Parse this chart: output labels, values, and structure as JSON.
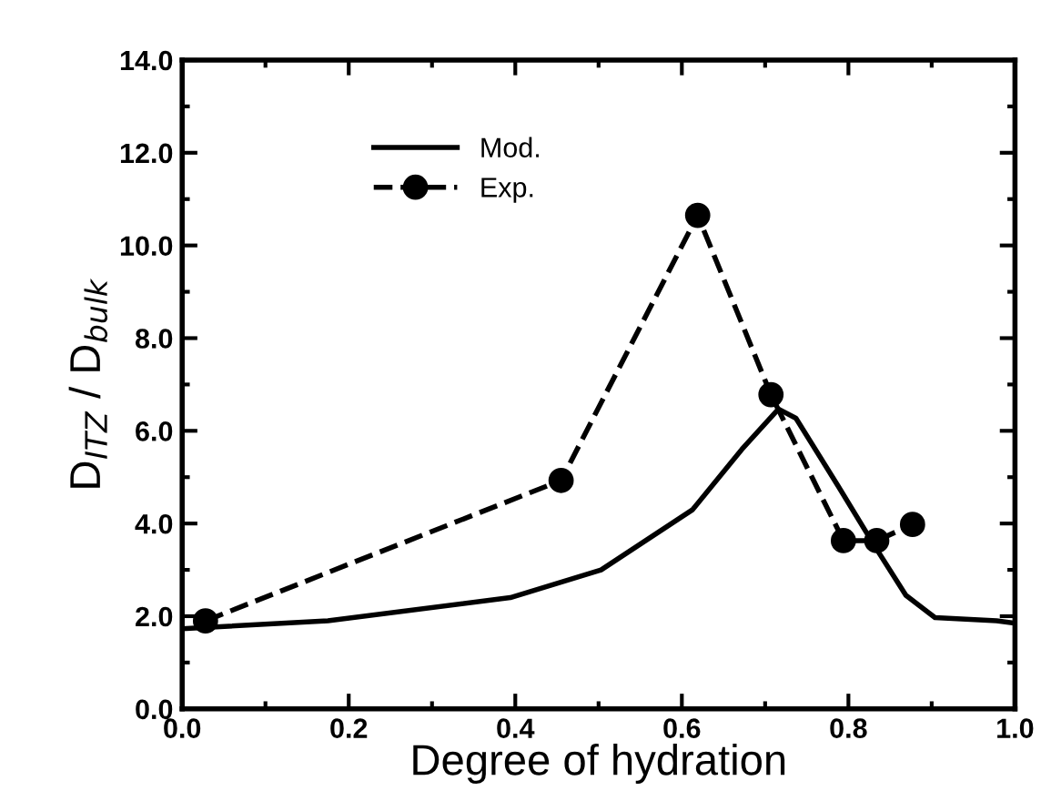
{
  "chart_data": {
    "type": "line",
    "xlabel": "Degree of hydration",
    "ylabel": "D$_{ITZ}$ / D$_{bulk}$",
    "xlim": [
      0.0,
      1.0
    ],
    "xticks": [
      {
        "value": 0,
        "label": "0.0"
      },
      0.2,
      0.4,
      0.6,
      0.8,
      {
        "value": 1,
        "label": "1.0"
      }
    ],
    "ylim": [
      0.0,
      14.0
    ],
    "yticks": [
      {
        "value": 0,
        "label": "0.0"
      },
      {
        "value": 2,
        "label": "2.0"
      },
      {
        "value": 4,
        "label": "4.0"
      },
      {
        "value": 6,
        "label": "6.0"
      },
      {
        "value": 8,
        "label": "8.0"
      },
      {
        "value": 10,
        "label": "10.0"
      },
      {
        "value": 12,
        "label": "12.0"
      },
      {
        "value": 14,
        "label": "14.0"
      }
    ],
    "grid": false,
    "legend": "top left",
    "series": [
      {
        "name": "Mod.",
        "color": "#000000",
        "line_style": "solid",
        "marker": "none",
        "x": [
          0.0,
          0.175,
          0.394,
          0.503,
          0.613,
          0.672,
          0.716,
          0.737,
          0.788,
          0.832,
          0.869,
          0.904,
          0.978,
          1.0
        ],
        "values": [
          1.73,
          1.9,
          2.4,
          3.0,
          4.3,
          5.6,
          6.47,
          6.27,
          4.8,
          3.5,
          2.45,
          1.97,
          1.9,
          1.85
        ]
      },
      {
        "name": "Exp.",
        "color": "#000000",
        "line_style": "dashed",
        "marker": "circle",
        "x": [
          0.028,
          0.455,
          0.619,
          0.707,
          0.794,
          0.834,
          0.877
        ],
        "values": [
          1.9,
          4.93,
          10.65,
          6.78,
          3.63,
          3.63,
          3.98
        ]
      }
    ]
  }
}
